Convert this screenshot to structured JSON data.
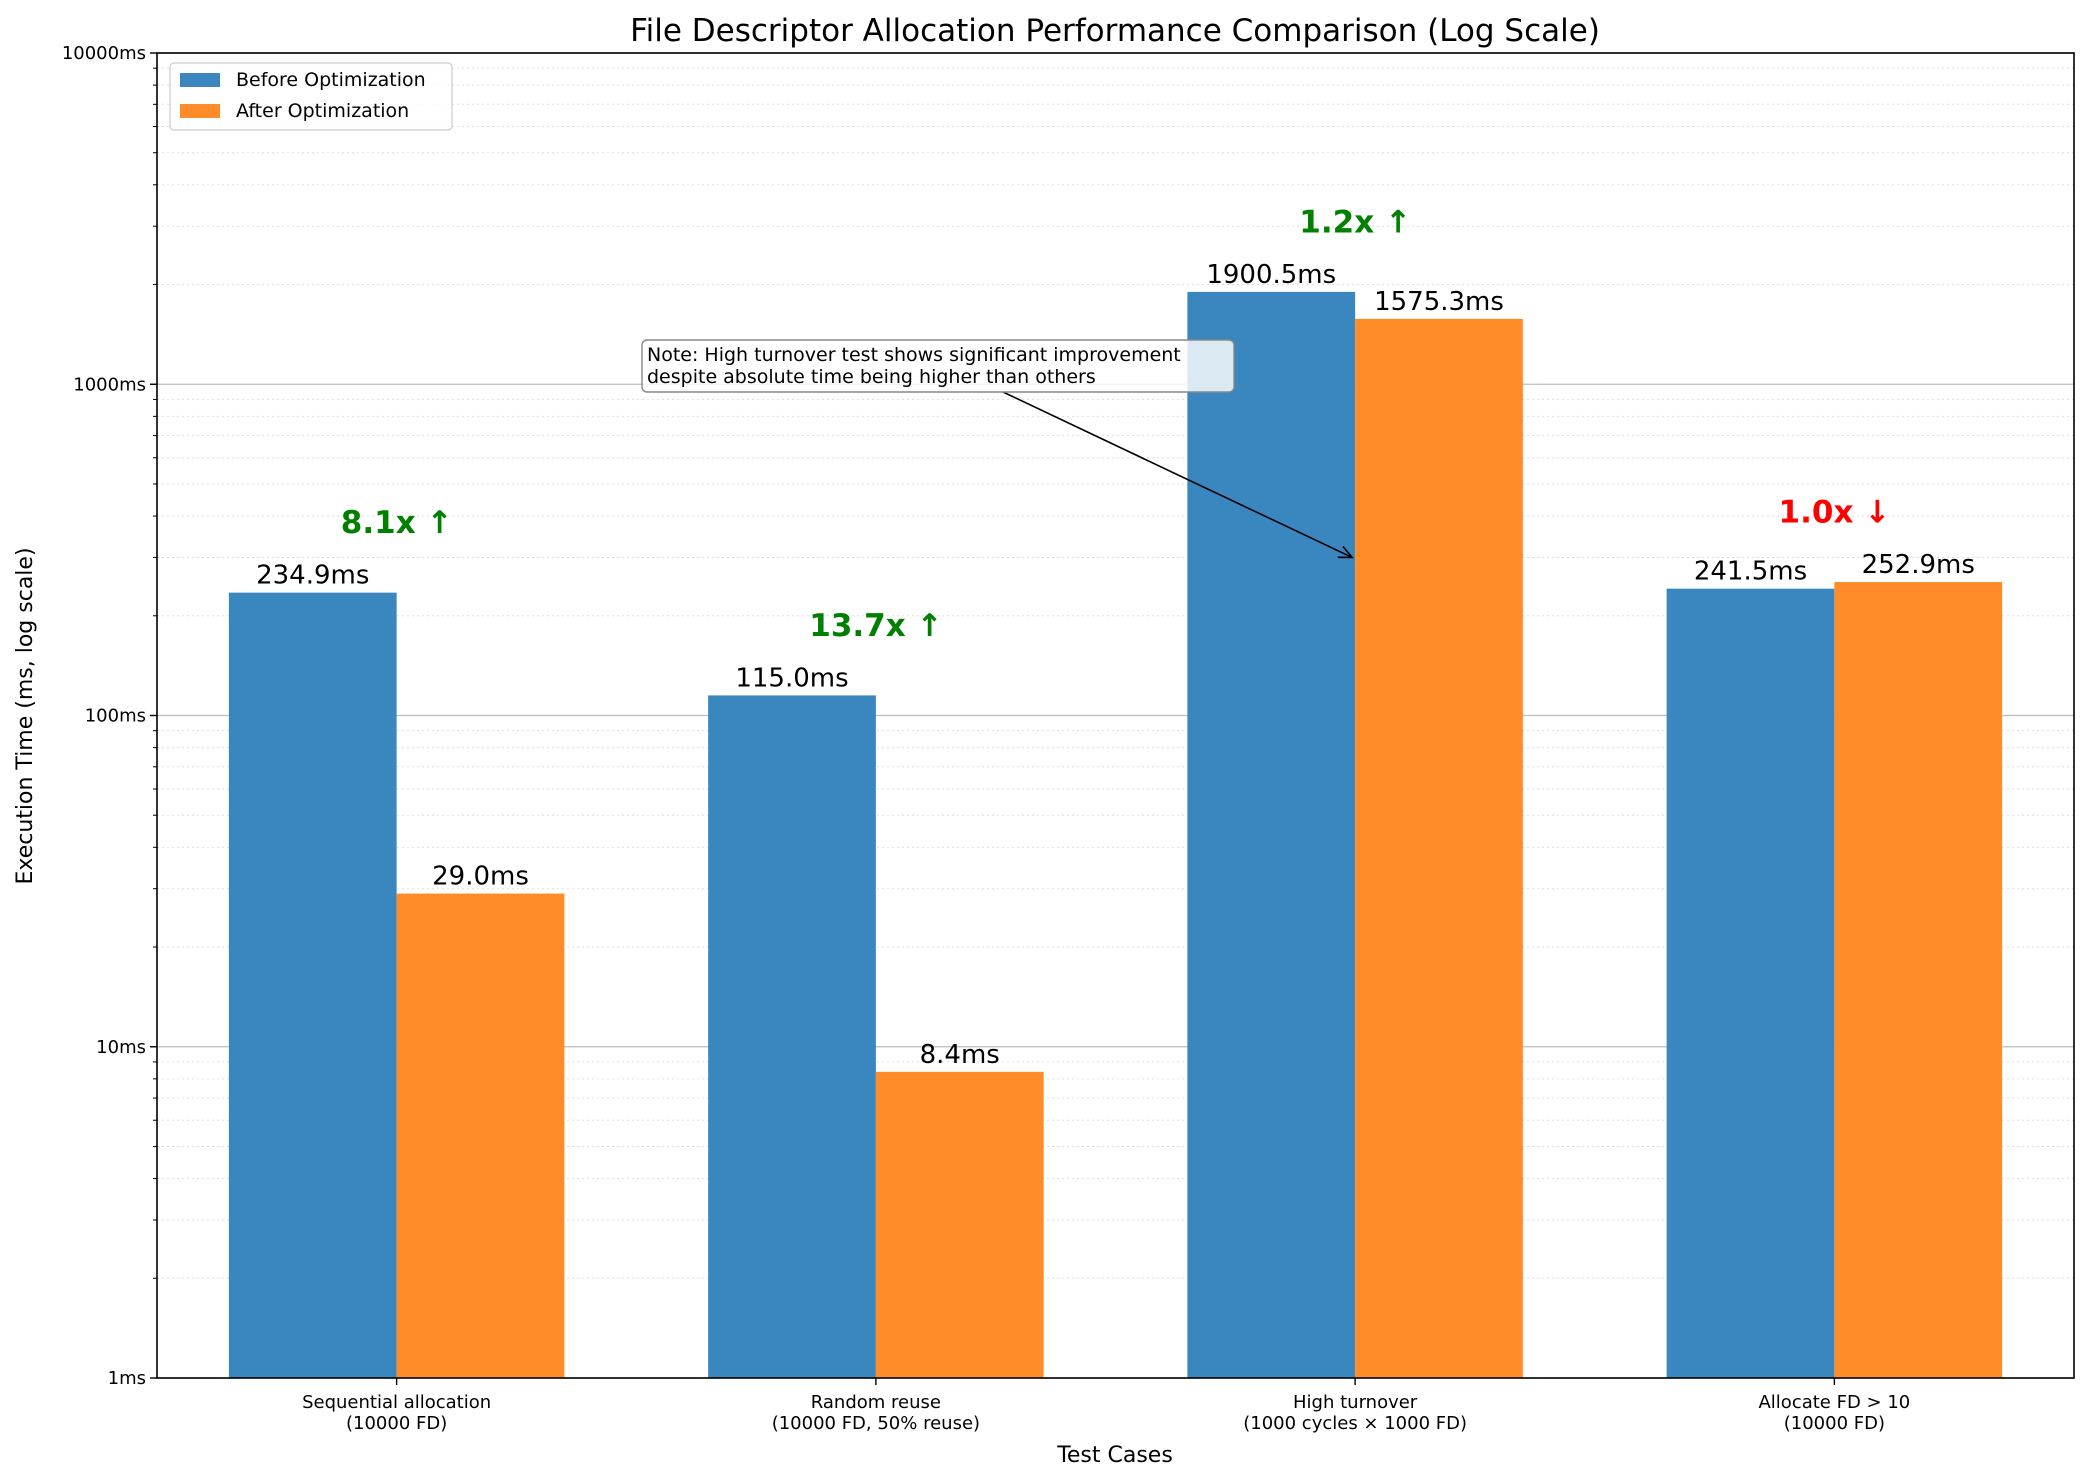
{
  "chart_data": {
    "type": "bar",
    "title": "File Descriptor Allocation Performance Comparison (Log Scale)",
    "xlabel": "Test Cases",
    "ylabel": "Execution Time (ms, log scale)",
    "yscale": "log",
    "ylim": [
      1,
      10000
    ],
    "yticks": [
      {
        "value": 1,
        "label": "1ms"
      },
      {
        "value": 10,
        "label": "10ms"
      },
      {
        "value": 100,
        "label": "100ms"
      },
      {
        "value": 1000,
        "label": "1000ms"
      },
      {
        "value": 10000,
        "label": "10000ms"
      }
    ],
    "grid": true,
    "legend_position": "top-left",
    "categories": [
      [
        "Sequential allocation",
        "(10000 FD)"
      ],
      [
        "Random reuse",
        "(10000 FD, 50% reuse)"
      ],
      [
        "High turnover",
        "(1000 cycles × 1000 FD)"
      ],
      [
        "Allocate FD > 10",
        "(10000 FD)"
      ]
    ],
    "series": [
      {
        "name": "Before Optimization",
        "color": "#3a86be",
        "values": [
          234.9,
          115.0,
          1900.5,
          241.5
        ],
        "labels": [
          "234.9ms",
          "115.0ms",
          "1900.5ms",
          "241.5ms"
        ]
      },
      {
        "name": "After Optimization",
        "color": "#ff8c28",
        "values": [
          29.0,
          8.4,
          1575.3,
          252.9
        ],
        "labels": [
          "29.0ms",
          "8.4ms",
          "1575.3ms",
          "252.9ms"
        ]
      }
    ],
    "speedups": [
      {
        "label": "8.1x ↑",
        "color": "#008000"
      },
      {
        "label": "13.7x ↑",
        "color": "#008000"
      },
      {
        "label": "1.2x ↑",
        "color": "#008000"
      },
      {
        "label": "1.0x ↓",
        "color": "#ff0000"
      }
    ],
    "annotation": {
      "lines": [
        "Note: High turnover test shows significant improvement",
        "despite absolute time being higher than others"
      ],
      "target_category": 2,
      "target_value": 300
    }
  }
}
